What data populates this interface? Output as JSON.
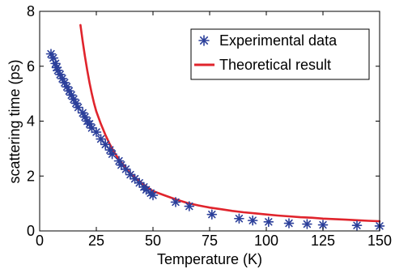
{
  "chart_data": {
    "type": "line",
    "xlabel": "Temperature (K)",
    "ylabel": "scattering time (ps)",
    "xlim": [
      0,
      150
    ],
    "ylim": [
      0,
      8
    ],
    "xticks": [
      "0",
      "25",
      "50",
      "75",
      "100",
      "125",
      "150"
    ],
    "yticks": [
      "0",
      "2",
      "4",
      "6",
      "8"
    ],
    "grid": false,
    "legend_position": "top-right",
    "series": [
      {
        "name": "Experimental data",
        "kind": "scatter",
        "marker": "asterisk",
        "color": "#2b3f9a",
        "points": [
          [
            5,
            6.45
          ],
          [
            6,
            6.3
          ],
          [
            7,
            6.1
          ],
          [
            7.5,
            5.95
          ],
          [
            8,
            5.85
          ],
          [
            9,
            5.7
          ],
          [
            10,
            5.55
          ],
          [
            11,
            5.4
          ],
          [
            12,
            5.25
          ],
          [
            13,
            5.1
          ],
          [
            14,
            4.95
          ],
          [
            15,
            4.8
          ],
          [
            16,
            4.65
          ],
          [
            17,
            4.5
          ],
          [
            19,
            4.3
          ],
          [
            20,
            4.15
          ],
          [
            21,
            4.0
          ],
          [
            22,
            3.9
          ],
          [
            23,
            3.75
          ],
          [
            25,
            3.6
          ],
          [
            27,
            3.35
          ],
          [
            29,
            3.15
          ],
          [
            31,
            2.95
          ],
          [
            32,
            2.8
          ],
          [
            35,
            2.55
          ],
          [
            36,
            2.4
          ],
          [
            38,
            2.25
          ],
          [
            40,
            2.05
          ],
          [
            42,
            1.9
          ],
          [
            44,
            1.75
          ],
          [
            46,
            1.6
          ],
          [
            47,
            1.5
          ],
          [
            49,
            1.38
          ],
          [
            50,
            1.3
          ],
          [
            60,
            1.05
          ],
          [
            66,
            0.9
          ],
          [
            76,
            0.6
          ],
          [
            88,
            0.45
          ],
          [
            94,
            0.38
          ],
          [
            101,
            0.33
          ],
          [
            110,
            0.28
          ],
          [
            118,
            0.25
          ],
          [
            125,
            0.22
          ],
          [
            140,
            0.2
          ],
          [
            150,
            0.18
          ]
        ]
      },
      {
        "name": "Theoretical result",
        "kind": "line",
        "color": "#e0242c",
        "points": [
          [
            18,
            7.5
          ],
          [
            19,
            6.9
          ],
          [
            20,
            6.35
          ],
          [
            21,
            5.85
          ],
          [
            22,
            5.4
          ],
          [
            23,
            5.0
          ],
          [
            24,
            4.65
          ],
          [
            25,
            4.35
          ],
          [
            27,
            3.9
          ],
          [
            29,
            3.5
          ],
          [
            31,
            3.15
          ],
          [
            33,
            2.85
          ],
          [
            35,
            2.6
          ],
          [
            38,
            2.3
          ],
          [
            40,
            2.1
          ],
          [
            43,
            1.88
          ],
          [
            46,
            1.68
          ],
          [
            50,
            1.45
          ],
          [
            55,
            1.3
          ],
          [
            60,
            1.15
          ],
          [
            65,
            1.02
          ],
          [
            70,
            0.93
          ],
          [
            75,
            0.85
          ],
          [
            80,
            0.79
          ],
          [
            85,
            0.73
          ],
          [
            90,
            0.68
          ],
          [
            95,
            0.64
          ],
          [
            100,
            0.6
          ],
          [
            105,
            0.56
          ],
          [
            110,
            0.53
          ],
          [
            115,
            0.5
          ],
          [
            120,
            0.48
          ],
          [
            125,
            0.45
          ],
          [
            130,
            0.43
          ],
          [
            135,
            0.41
          ],
          [
            140,
            0.39
          ],
          [
            145,
            0.37
          ],
          [
            150,
            0.35
          ]
        ]
      }
    ]
  }
}
